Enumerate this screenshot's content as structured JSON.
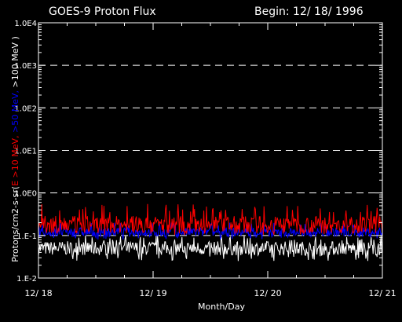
{
  "chart_data": {
    "type": "line",
    "title_left": "GOES-9 Proton Flux",
    "title_right": "Begin: 12/ 18/ 1996",
    "xlabel": "Month/Day",
    "ylabel_parts": [
      {
        "text": "Protons/cm2-s-sr(",
        "color": "#ffffff"
      },
      {
        "text": "E >10 MeV, ",
        "color": "#ff0000"
      },
      {
        "text": ">50 MeV, ",
        "color": "#0000ff"
      },
      {
        "text": ">100 MeV )",
        "color": "#ffffff"
      }
    ],
    "y_scale": "log",
    "ylim": [
      0.01,
      10000
    ],
    "y_ticks": [
      {
        "value": 10000,
        "label": "1.0E4"
      },
      {
        "value": 1000,
        "label": "1.0E3"
      },
      {
        "value": 100,
        "label": "1.0E2"
      },
      {
        "value": 10,
        "label": "1.0E1"
      },
      {
        "value": 1,
        "label": "1.0E0"
      },
      {
        "value": 0.1,
        "label": "1.E-1"
      },
      {
        "value": 0.01,
        "label": "1.E-2"
      }
    ],
    "x_days": [
      0,
      3
    ],
    "x_ticks": [
      {
        "value": 0,
        "label": "12/ 18"
      },
      {
        "value": 1,
        "label": "12/ 19"
      },
      {
        "value": 2,
        "label": "12/ 20"
      },
      {
        "value": 3,
        "label": "12/ 21"
      }
    ],
    "gridlines": [
      1000,
      100,
      10,
      1,
      0.1
    ],
    "series": [
      {
        "energy": ">10 MeV",
        "color": "#ff0000",
        "typical": 0.18,
        "range": [
          0.1,
          0.55
        ]
      },
      {
        "energy": ">50 MeV",
        "color": "#0000ff",
        "typical": 0.12,
        "range": [
          0.08,
          0.2
        ]
      },
      {
        "energy": ">100 MeV",
        "color": "#ffffff",
        "typical": 0.05,
        "range": [
          0.025,
          0.1
        ]
      }
    ]
  }
}
